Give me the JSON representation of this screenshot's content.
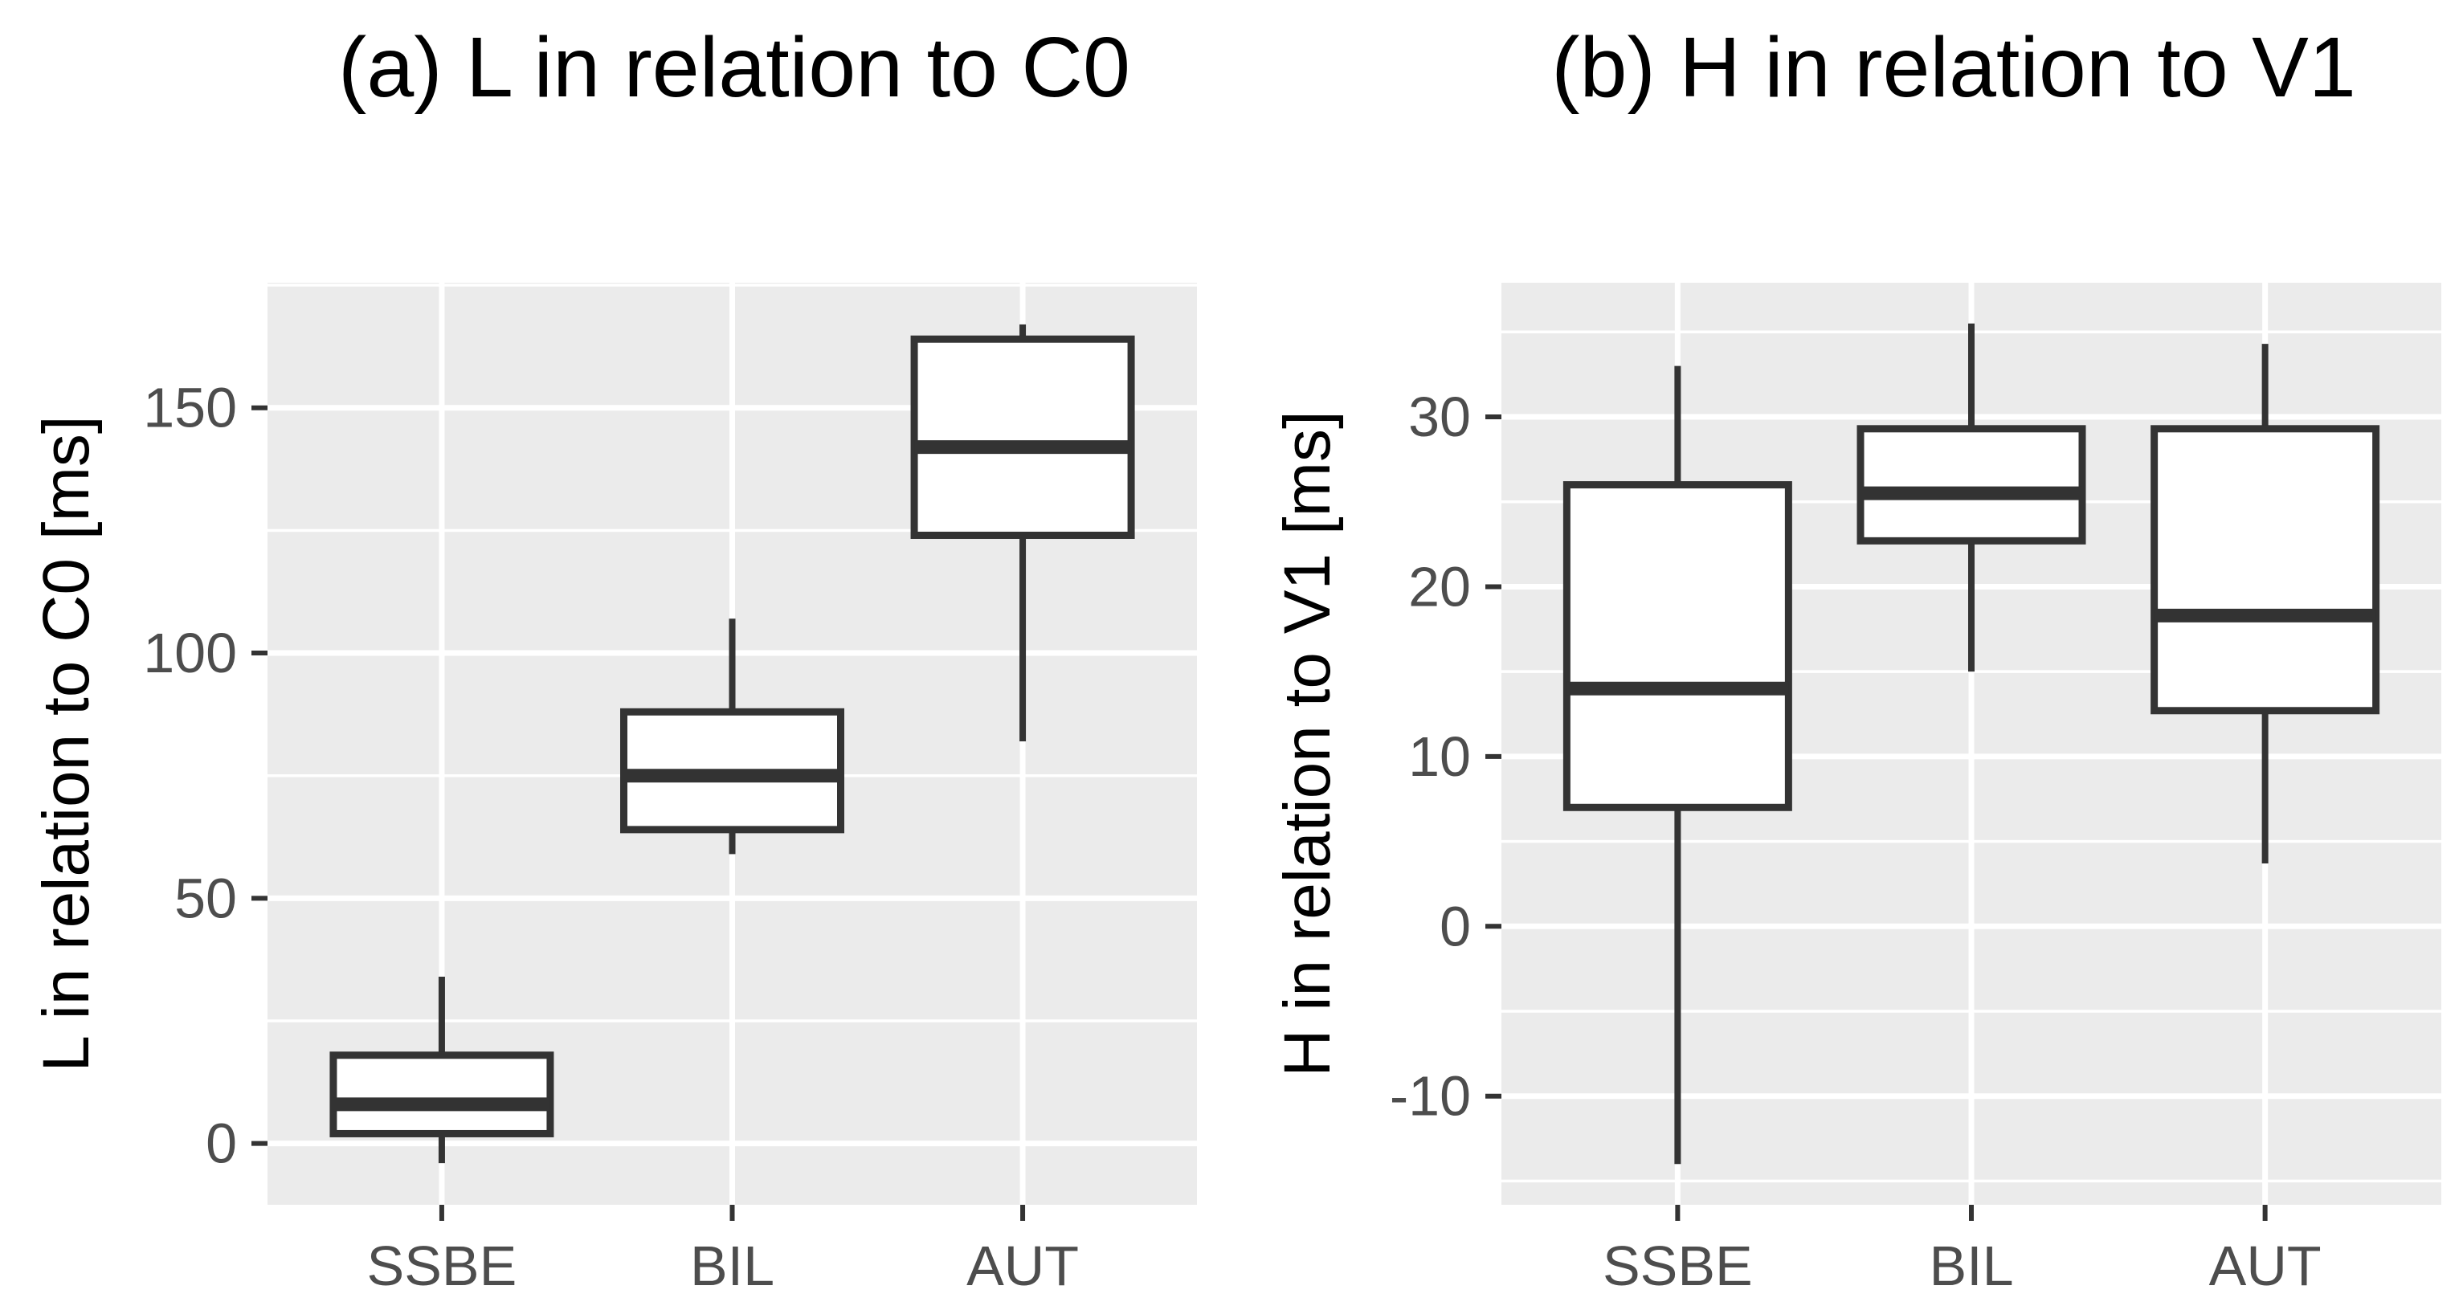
{
  "chart_data": [
    {
      "type": "boxplot",
      "title": "(a) L in relation to C0",
      "xlabel": "",
      "ylabel": "L in relation to C0 [ms]",
      "categories": [
        "SSBE",
        "BIL",
        "AUT"
      ],
      "boxes": [
        {
          "category": "SSBE",
          "whisker_low": -4,
          "q1": 2,
          "median": 8,
          "q3": 18,
          "whisker_high": 34
        },
        {
          "category": "BIL",
          "whisker_low": 59,
          "q1": 64,
          "median": 75,
          "q3": 88,
          "whisker_high": 107
        },
        {
          "category": "AUT",
          "whisker_low": 82,
          "q1": 124,
          "median": 142,
          "q3": 164,
          "whisker_high": 167
        }
      ],
      "ylim": [
        -12.5,
        175.5
      ],
      "yticks": [
        0,
        50,
        100,
        150
      ],
      "ytick_labels": [
        "0",
        "50",
        "100",
        "150"
      ],
      "grid": true
    },
    {
      "type": "boxplot",
      "title": "(b) H in relation to V1",
      "xlabel": "",
      "ylabel": "H in relation to V1 [ms]",
      "categories": [
        "SSBE",
        "BIL",
        "AUT"
      ],
      "boxes": [
        {
          "category": "SSBE",
          "whisker_low": -14,
          "q1": 7,
          "median": 14,
          "q3": 26,
          "whisker_high": 33
        },
        {
          "category": "BIL",
          "whisker_low": 15,
          "q1": 22.7,
          "median": 25.5,
          "q3": 29.3,
          "whisker_high": 35.5
        },
        {
          "category": "AUT",
          "whisker_low": 3.7,
          "q1": 12.7,
          "median": 18.3,
          "q3": 29.3,
          "whisker_high": 34.3
        }
      ],
      "ylim": [
        -16.4,
        37.9
      ],
      "yticks": [
        -10,
        0,
        10,
        20,
        30
      ],
      "ytick_labels": [
        "-10",
        "0",
        "10",
        "20",
        "30"
      ],
      "grid": true
    }
  ]
}
